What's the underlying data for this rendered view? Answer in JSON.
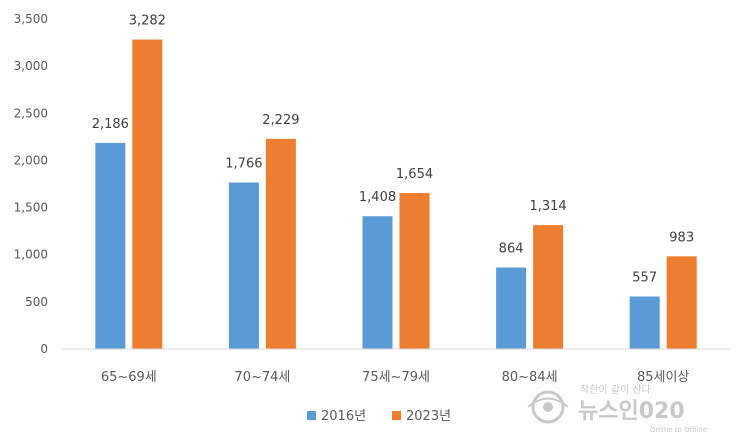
{
  "chart_data": {
    "type": "bar",
    "categories": [
      "65~69세",
      "70~74세",
      "75세~79세",
      "80~84세",
      "85세이상"
    ],
    "series": [
      {
        "name": "2016년",
        "values": [
          2186,
          1766,
          1408,
          864,
          557
        ],
        "color": "#5b9bd5"
      },
      {
        "name": "2023년",
        "values": [
          3282,
          2229,
          1654,
          1314,
          983
        ],
        "color": "#ed7d31"
      }
    ],
    "data_labels": [
      [
        "2,186",
        "1,766",
        "1,408",
        "864",
        "557"
      ],
      [
        "3,282",
        "2,229",
        "1,654",
        "1,314",
        "983"
      ]
    ],
    "yticks": [
      "0",
      "500",
      "1,000",
      "1,500",
      "2,000",
      "2,500",
      "3,000",
      "3,500"
    ],
    "ylim": [
      0,
      3500
    ],
    "grid": false,
    "legend": "bottom",
    "title": "",
    "xlabel": "",
    "ylabel": ""
  },
  "watermark": {
    "tagline": "착한이 같이 산다",
    "brand": "뉴스인020",
    "sub": "Online to Offline",
    "icon": "eye-logo-icon"
  }
}
